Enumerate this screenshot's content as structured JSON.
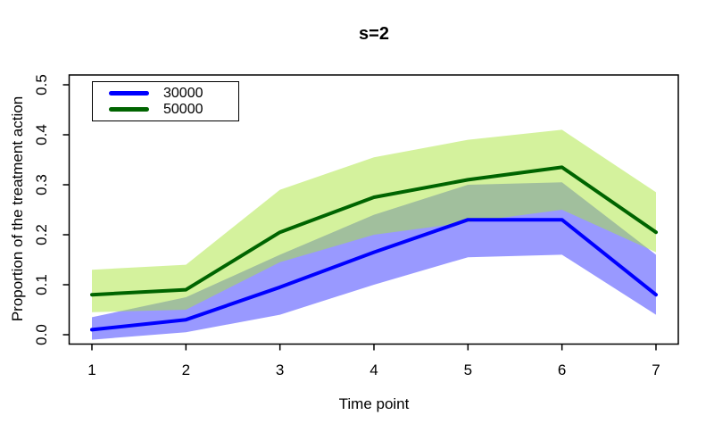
{
  "title": "s=2",
  "chart_data": {
    "type": "line",
    "title": "s=2",
    "xlabel": "Time point",
    "ylabel": "Proportion of the treatment action",
    "x": [
      1,
      2,
      3,
      4,
      5,
      6,
      7
    ],
    "xlim": [
      1,
      7
    ],
    "ylim": [
      0,
      0.5
    ],
    "grid": false,
    "legend_position": "top-left",
    "x_ticks": {
      "values": [
        1,
        2,
        3,
        4,
        5,
        6,
        7
      ],
      "labels": [
        "1",
        "2",
        "3",
        "4",
        "5",
        "6",
        "7"
      ]
    },
    "y_ticks": {
      "values": [
        0,
        0.1,
        0.2,
        0.3,
        0.4,
        0.5
      ],
      "labels": [
        "0.0",
        "0.1",
        "0.2",
        "0.3",
        "0.4",
        "0.5"
      ]
    },
    "series": [
      {
        "name": "30000",
        "color": "#0000ff",
        "band_color": "rgba(0,0,255,0.4)",
        "values": [
          0.01,
          0.03,
          0.095,
          0.165,
          0.23,
          0.23,
          0.08
        ],
        "band_lower": [
          -0.01,
          0.005,
          0.04,
          0.1,
          0.155,
          0.16,
          0.04
        ],
        "band_upper": [
          0.035,
          0.075,
          0.16,
          0.24,
          0.3,
          0.305,
          0.16
        ]
      },
      {
        "name": "50000",
        "color": "#006400",
        "band_color": "rgba(170,230,60,0.5)",
        "values": [
          0.08,
          0.09,
          0.205,
          0.275,
          0.31,
          0.335,
          0.205
        ],
        "band_lower": [
          0.045,
          0.05,
          0.145,
          0.2,
          0.225,
          0.25,
          0.165
        ],
        "band_upper": [
          0.13,
          0.14,
          0.29,
          0.355,
          0.39,
          0.41,
          0.285
        ]
      }
    ]
  }
}
